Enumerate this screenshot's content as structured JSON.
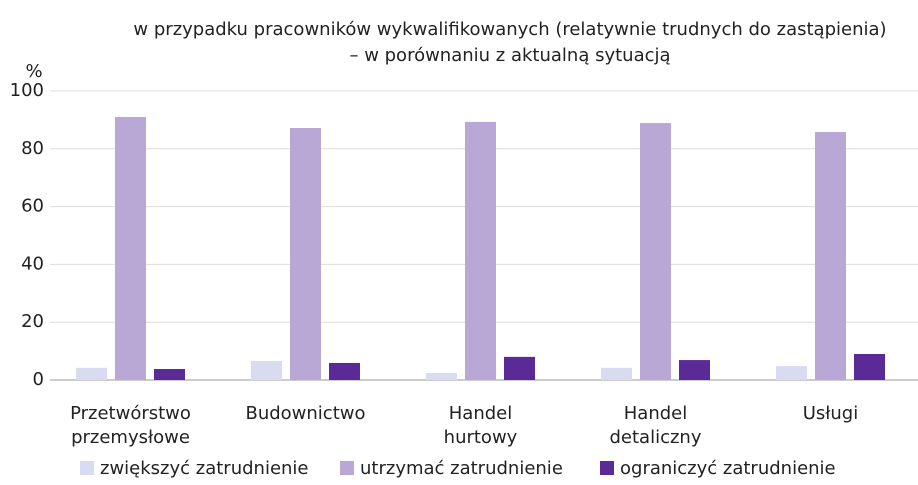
{
  "chart_data": {
    "type": "bar",
    "title": [
      "w przypadku pracowników wykwalifikowanych (relatywnie trudnych do zastąpienia)",
      "– w porównaniu z aktualną sytuacją"
    ],
    "ylabel": "%",
    "categories": [
      "Przetwórstwo przemysłowe",
      "Budownictwo",
      "Handel hurtowy",
      "Handel detaliczny",
      "Usługi"
    ],
    "series": [
      {
        "name": "zwiększyć zatrudnienie",
        "color": "#d9dcf0",
        "values": [
          4.2,
          6.6,
          2.4,
          4.2,
          4.8
        ]
      },
      {
        "name": "utrzymać zatrudnienie",
        "color": "#b9a7d6",
        "values": [
          91.0,
          87.2,
          89.3,
          88.9,
          85.8
        ]
      },
      {
        "name": "ograniczyć zatrudnienie",
        "color": "#5a2a96",
        "values": [
          3.8,
          5.9,
          8.0,
          6.9,
          9.0
        ]
      }
    ],
    "ylim": [
      0,
      100
    ],
    "yticks": [
      0,
      20,
      40,
      60,
      80,
      100
    ],
    "grid": true
  }
}
